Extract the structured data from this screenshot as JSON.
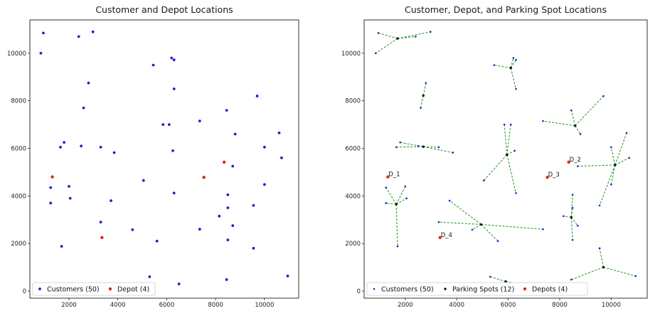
{
  "colors": {
    "customer": "#1f1fd6",
    "depot": "#e0251b",
    "parking": "#111111",
    "link": "#2e9e2e"
  },
  "chart_data": [
    {
      "type": "scatter",
      "title": "Customer and Depot Locations",
      "xlim": [
        400,
        11400
      ],
      "ylim": [
        -300,
        11400
      ],
      "xticks": [
        2000,
        4000,
        6000,
        8000,
        10000
      ],
      "yticks": [
        0,
        2000,
        4000,
        6000,
        8000,
        10000
      ],
      "grid": false,
      "legend_position": "bottom-left",
      "series": [
        {
          "name": "Customers (50)",
          "points": [
            [
              950,
              10850
            ],
            [
              850,
              10000
            ],
            [
              2400,
              10700
            ],
            [
              2980,
              10900
            ],
            [
              2800,
              8750
            ],
            [
              2600,
              7700
            ],
            [
              1800,
              6250
            ],
            [
              1650,
              6050
            ],
            [
              2500,
              6100
            ],
            [
              3300,
              6050
            ],
            [
              3850,
              5820
            ],
            [
              1250,
              4350
            ],
            [
              1250,
              3700
            ],
            [
              2000,
              4400
            ],
            [
              2050,
              3900
            ],
            [
              1700,
              1880
            ],
            [
              3300,
              2900
            ],
            [
              3720,
              3800
            ],
            [
              5050,
              4650
            ],
            [
              4600,
              2580
            ],
            [
              5600,
              2100
            ],
            [
              5300,
              600
            ],
            [
              6500,
              300
            ],
            [
              5450,
              9500
            ],
            [
              6200,
              9800
            ],
            [
              6300,
              9720
            ],
            [
              6300,
              8500
            ],
            [
              5850,
              7000
            ],
            [
              6100,
              7000
            ],
            [
              6250,
              5900
            ],
            [
              6300,
              4120
            ],
            [
              7350,
              7150
            ],
            [
              8450,
              7600
            ],
            [
              8800,
              6600
            ],
            [
              9700,
              8200
            ],
            [
              10600,
              6650
            ],
            [
              10000,
              6050
            ],
            [
              10700,
              5600
            ],
            [
              8700,
              5250
            ],
            [
              8500,
              4050
            ],
            [
              8500,
              3500
            ],
            [
              9550,
              3600
            ],
            [
              10000,
              4480
            ],
            [
              8150,
              3150
            ],
            [
              8700,
              2750
            ],
            [
              8500,
              2150
            ],
            [
              7350,
              2600
            ],
            [
              9550,
              1800
            ],
            [
              8450,
              480
            ],
            [
              10950,
              630
            ]
          ]
        },
        {
          "name": "Depot (4)",
          "points": [
            [
              1320,
              4800
            ],
            [
              8350,
              5420
            ],
            [
              7520,
              4780
            ],
            [
              3350,
              2250
            ]
          ]
        }
      ]
    },
    {
      "type": "scatter",
      "title": "Customer, Depot, and Parking Spot Locations",
      "xlim": [
        400,
        11400
      ],
      "ylim": [
        -300,
        11400
      ],
      "xticks": [
        2000,
        4000,
        6000,
        8000,
        10000
      ],
      "yticks": [
        0,
        2000,
        4000,
        6000,
        8000,
        10000
      ],
      "grid": false,
      "legend_position": "bottom",
      "series": [
        {
          "name": "Customers (50)",
          "points": [
            [
              950,
              10850
            ],
            [
              850,
              10000
            ],
            [
              2400,
              10700
            ],
            [
              2980,
              10900
            ],
            [
              2800,
              8750
            ],
            [
              2600,
              7700
            ],
            [
              1800,
              6250
            ],
            [
              1650,
              6050
            ],
            [
              2500,
              6100
            ],
            [
              3300,
              6050
            ],
            [
              3850,
              5820
            ],
            [
              1250,
              4350
            ],
            [
              1250,
              3700
            ],
            [
              2000,
              4400
            ],
            [
              2050,
              3900
            ],
            [
              1700,
              1880
            ],
            [
              3300,
              2900
            ],
            [
              3720,
              3800
            ],
            [
              5050,
              4650
            ],
            [
              4600,
              2580
            ],
            [
              5600,
              2100
            ],
            [
              5300,
              600
            ],
            [
              6500,
              300
            ],
            [
              5450,
              9500
            ],
            [
              6200,
              9800
            ],
            [
              6300,
              9720
            ],
            [
              6300,
              8500
            ],
            [
              5850,
              7000
            ],
            [
              6100,
              7000
            ],
            [
              6250,
              5900
            ],
            [
              6300,
              4120
            ],
            [
              7350,
              7150
            ],
            [
              8450,
              7600
            ],
            [
              8800,
              6600
            ],
            [
              9700,
              8200
            ],
            [
              10600,
              6650
            ],
            [
              10000,
              6050
            ],
            [
              10700,
              5600
            ],
            [
              8700,
              5250
            ],
            [
              8500,
              4050
            ],
            [
              8500,
              3500
            ],
            [
              9550,
              3600
            ],
            [
              10000,
              4480
            ],
            [
              8150,
              3150
            ],
            [
              8700,
              2750
            ],
            [
              8500,
              2150
            ],
            [
              7350,
              2600
            ],
            [
              9550,
              1800
            ],
            [
              8450,
              480
            ],
            [
              10950,
              630
            ]
          ]
        },
        {
          "name": "Parking Spots (12)",
          "points": [
            [
              1700,
              10620
            ],
            [
              6100,
              9380
            ],
            [
              2700,
              8220
            ],
            [
              2700,
              6070
            ],
            [
              8600,
              6950
            ],
            [
              5950,
              5730
            ],
            [
              10150,
              5300
            ],
            [
              1650,
              3650
            ],
            [
              4950,
              2800
            ],
            [
              8450,
              3100
            ],
            [
              9700,
              1000
            ],
            [
              5900,
              400
            ]
          ]
        },
        {
          "name": "Depots (4)",
          "points": [
            [
              1320,
              4800
            ],
            [
              8350,
              5420
            ],
            [
              7520,
              4780
            ],
            [
              3350,
              2250
            ]
          ]
        }
      ],
      "assignments": [
        0,
        0,
        0,
        0,
        2,
        2,
        3,
        3,
        3,
        3,
        3,
        7,
        7,
        7,
        7,
        7,
        8,
        8,
        5,
        8,
        8,
        11,
        11,
        1,
        1,
        1,
        1,
        5,
        5,
        5,
        5,
        4,
        4,
        4,
        4,
        6,
        6,
        6,
        6,
        9,
        9,
        6,
        6,
        9,
        9,
        9,
        8,
        10,
        10,
        10
      ],
      "annotations": [
        "D_1",
        "D_2",
        "D_3",
        "D_4"
      ]
    }
  ]
}
